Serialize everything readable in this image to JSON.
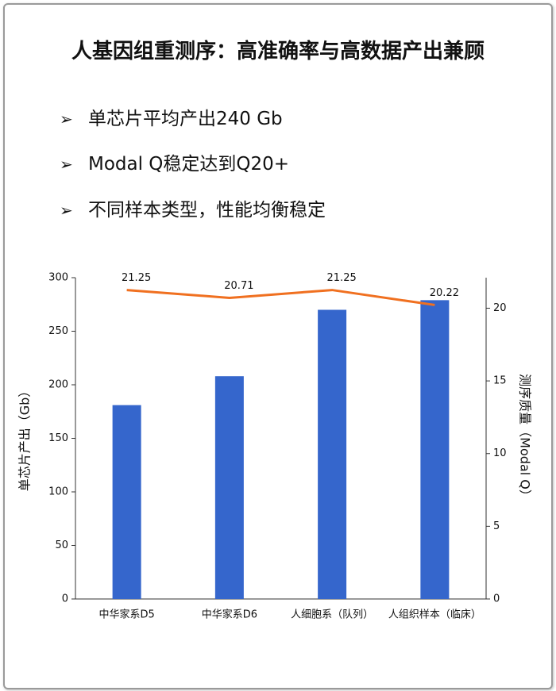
{
  "title": "人基因组重测序：高准确率与高数据产出兼顾",
  "bullets": [
    "单芯片平均产出240 Gb",
    "Modal Q稳定达到Q20+",
    "不同样本类型，性能均衡稳定"
  ],
  "chart_data": {
    "type": "bar",
    "ylabel": "单芯片产出（Gb）",
    "y2label": "测序质量（Modal Q）",
    "categories": [
      "中华家系D5",
      "中华家系D6",
      "人细胞系（队列）",
      "人组织样本（临床）"
    ],
    "series": [
      {
        "type": "bar",
        "color": "#3566cc",
        "values": [
          181,
          208,
          270,
          279
        ]
      },
      {
        "type": "line",
        "axis": "y2",
        "color": "#f07020",
        "values": [
          21.25,
          20.71,
          21.25,
          20.22
        ]
      }
    ],
    "ylim": [
      0,
      300
    ],
    "yticks": [
      0,
      50,
      100,
      150,
      200,
      250,
      300
    ],
    "y2lim": [
      0,
      22.1
    ],
    "y2ticks": [
      0,
      5,
      10,
      15,
      20
    ]
  }
}
